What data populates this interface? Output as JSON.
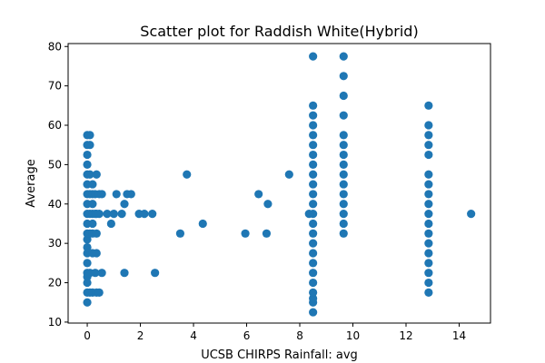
{
  "chart_data": {
    "type": "scatter",
    "title": "Scatter plot for Raddish White(Hybrid)",
    "xlabel": "UCSB CHIRPS Rainfall: avg",
    "ylabel": "Average",
    "xlim": [
      -0.72,
      15.18
    ],
    "ylim": [
      9.75,
      80.75
    ],
    "xticks": [
      0,
      2,
      4,
      6,
      8,
      10,
      12,
      14
    ],
    "yticks": [
      10,
      20,
      30,
      40,
      50,
      60,
      70,
      80
    ],
    "grid": false,
    "marker_color": "#1f77b4",
    "series": [
      {
        "points": [
          [
            0.0,
            15.0
          ],
          [
            0.0,
            17.5
          ],
          [
            0.0,
            20.0
          ],
          [
            0.0,
            21.5
          ],
          [
            0.0,
            22.5
          ],
          [
            0.0,
            25.0
          ],
          [
            0.0,
            27.5
          ],
          [
            0.0,
            29.0
          ],
          [
            0.0,
            31.0
          ],
          [
            0.0,
            32.5
          ],
          [
            0.0,
            35.0
          ],
          [
            0.0,
            37.5
          ],
          [
            0.0,
            40.0
          ],
          [
            0.0,
            42.5
          ],
          [
            0.0,
            45.0
          ],
          [
            0.0,
            47.5
          ],
          [
            0.0,
            50.0
          ],
          [
            0.0,
            52.5
          ],
          [
            0.0,
            55.0
          ],
          [
            0.0,
            57.5
          ],
          [
            0.1,
            17.5
          ],
          [
            0.1,
            22.5
          ],
          [
            0.1,
            32.5
          ],
          [
            0.1,
            37.5
          ],
          [
            0.1,
            42.5
          ],
          [
            0.1,
            47.5
          ],
          [
            0.1,
            55.0
          ],
          [
            0.1,
            57.5
          ],
          [
            0.2,
            17.5
          ],
          [
            0.2,
            27.5
          ],
          [
            0.2,
            32.5
          ],
          [
            0.2,
            35.0
          ],
          [
            0.2,
            37.5
          ],
          [
            0.2,
            40.0
          ],
          [
            0.2,
            42.5
          ],
          [
            0.2,
            45.0
          ],
          [
            0.3,
            22.5
          ],
          [
            0.3,
            37.5
          ],
          [
            0.3,
            42.5
          ],
          [
            0.35,
            17.5
          ],
          [
            0.35,
            27.5
          ],
          [
            0.35,
            32.5
          ],
          [
            0.35,
            37.5
          ],
          [
            0.35,
            47.5
          ],
          [
            0.45,
            17.5
          ],
          [
            0.45,
            37.5
          ],
          [
            0.45,
            42.5
          ],
          [
            0.55,
            22.5
          ],
          [
            0.55,
            42.5
          ],
          [
            0.75,
            37.5
          ],
          [
            0.9,
            35.0
          ],
          [
            1.0,
            37.5
          ],
          [
            1.1,
            42.5
          ],
          [
            1.3,
            37.5
          ],
          [
            1.4,
            22.5
          ],
          [
            1.4,
            40.0
          ],
          [
            1.5,
            42.5
          ],
          [
            1.65,
            42.5
          ],
          [
            1.95,
            37.5
          ],
          [
            2.15,
            37.5
          ],
          [
            2.45,
            37.5
          ],
          [
            2.55,
            22.5
          ],
          [
            3.5,
            32.5
          ],
          [
            3.75,
            47.5
          ],
          [
            4.35,
            35.0
          ],
          [
            5.95,
            32.5
          ],
          [
            6.45,
            42.5
          ],
          [
            6.75,
            32.5
          ],
          [
            6.8,
            40.0
          ],
          [
            7.6,
            47.5
          ],
          [
            8.35,
            37.5
          ],
          [
            8.5,
            12.5
          ],
          [
            8.5,
            15.0
          ],
          [
            8.5,
            16.0
          ],
          [
            8.5,
            17.5
          ],
          [
            8.5,
            20.0
          ],
          [
            8.5,
            22.5
          ],
          [
            8.5,
            25.0
          ],
          [
            8.5,
            27.5
          ],
          [
            8.5,
            30.0
          ],
          [
            8.5,
            32.5
          ],
          [
            8.5,
            35.0
          ],
          [
            8.5,
            37.5
          ],
          [
            8.5,
            40.0
          ],
          [
            8.5,
            42.5
          ],
          [
            8.5,
            45.0
          ],
          [
            8.5,
            47.5
          ],
          [
            8.5,
            50.0
          ],
          [
            8.5,
            52.5
          ],
          [
            8.5,
            55.0
          ],
          [
            8.5,
            57.5
          ],
          [
            8.5,
            60.0
          ],
          [
            8.5,
            62.5
          ],
          [
            8.5,
            65.0
          ],
          [
            8.5,
            77.5
          ],
          [
            9.65,
            32.5
          ],
          [
            9.65,
            35.0
          ],
          [
            9.65,
            37.5
          ],
          [
            9.65,
            40.0
          ],
          [
            9.65,
            42.5
          ],
          [
            9.65,
            45.0
          ],
          [
            9.65,
            47.5
          ],
          [
            9.65,
            50.0
          ],
          [
            9.65,
            52.5
          ],
          [
            9.65,
            55.0
          ],
          [
            9.65,
            57.5
          ],
          [
            9.65,
            62.5
          ],
          [
            9.65,
            67.5
          ],
          [
            9.65,
            72.5
          ],
          [
            9.65,
            77.5
          ],
          [
            12.85,
            17.5
          ],
          [
            12.85,
            20.0
          ],
          [
            12.85,
            22.5
          ],
          [
            12.85,
            25.0
          ],
          [
            12.85,
            27.5
          ],
          [
            12.85,
            30.0
          ],
          [
            12.85,
            32.5
          ],
          [
            12.85,
            35.0
          ],
          [
            12.85,
            37.5
          ],
          [
            12.85,
            40.0
          ],
          [
            12.85,
            42.5
          ],
          [
            12.85,
            45.0
          ],
          [
            12.85,
            47.5
          ],
          [
            12.85,
            52.5
          ],
          [
            12.85,
            55.0
          ],
          [
            12.85,
            57.5
          ],
          [
            12.85,
            60.0
          ],
          [
            12.85,
            65.0
          ],
          [
            14.45,
            37.5
          ]
        ]
      }
    ]
  }
}
